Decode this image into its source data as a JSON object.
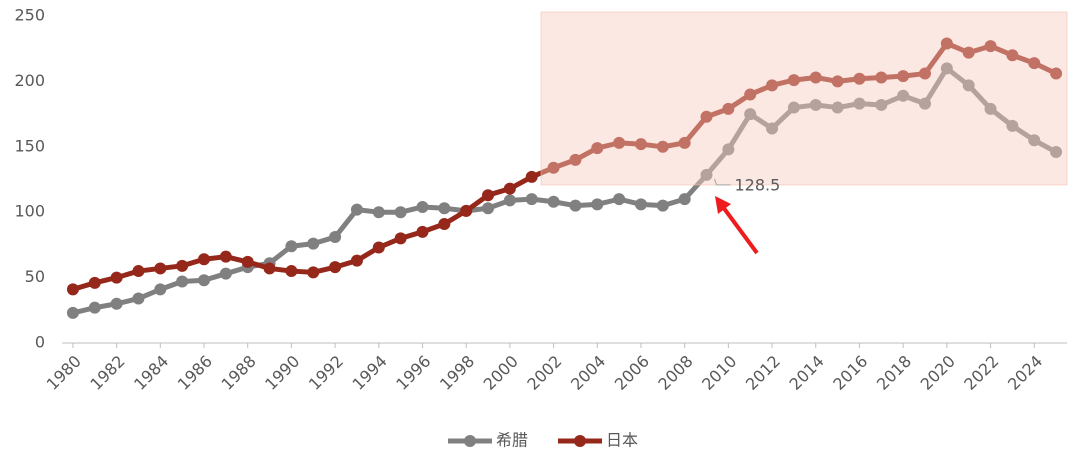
{
  "chart_data": {
    "type": "line",
    "x": [
      1980,
      1981,
      1982,
      1983,
      1984,
      1985,
      1986,
      1987,
      1988,
      1989,
      1990,
      1991,
      1992,
      1993,
      1994,
      1995,
      1996,
      1997,
      1998,
      1999,
      2000,
      2001,
      2002,
      2003,
      2004,
      2005,
      2006,
      2007,
      2008,
      2009,
      2010,
      2011,
      2012,
      2013,
      2014,
      2015,
      2016,
      2017,
      2018,
      2019,
      2020,
      2021,
      2022,
      2023,
      2024,
      2025
    ],
    "series": [
      {
        "name": "希腊",
        "color": "#808080",
        "values": [
          23,
          27,
          30,
          34,
          41,
          47,
          48,
          53,
          58,
          61,
          74,
          76,
          81,
          102,
          100,
          100,
          104,
          103,
          101,
          103,
          109,
          110,
          108,
          105,
          106,
          110,
          106,
          105,
          110,
          128.5,
          148,
          175,
          164,
          180,
          182,
          180,
          183,
          182,
          189,
          183,
          210,
          197,
          179,
          166,
          155,
          146
        ]
      },
      {
        "name": "日本",
        "color": "#96281b",
        "values": [
          41,
          46,
          50,
          55,
          57,
          59,
          64,
          66,
          62,
          57,
          55,
          54,
          58,
          63,
          73,
          80,
          85,
          91,
          101,
          113,
          118,
          127,
          134,
          140,
          149,
          153,
          152,
          150,
          153,
          173,
          179,
          190,
          197,
          201,
          203,
          200,
          202,
          203,
          204,
          206,
          229,
          222,
          227,
          220,
          214,
          206
        ]
      }
    ],
    "annotation": "128.5",
    "xlim": [
      1979.5,
      2025.5
    ],
    "xticks": [
      1980,
      1982,
      1984,
      1986,
      1988,
      1990,
      1992,
      1994,
      1996,
      1998,
      2000,
      2002,
      2004,
      2006,
      2008,
      2010,
      2012,
      2014,
      2016,
      2018,
      2020,
      2022,
      2024
    ],
    "ylim": [
      0,
      250
    ],
    "yticks": [
      0,
      50,
      100,
      150,
      200,
      250
    ],
    "grid": false,
    "legend": "bottom"
  }
}
